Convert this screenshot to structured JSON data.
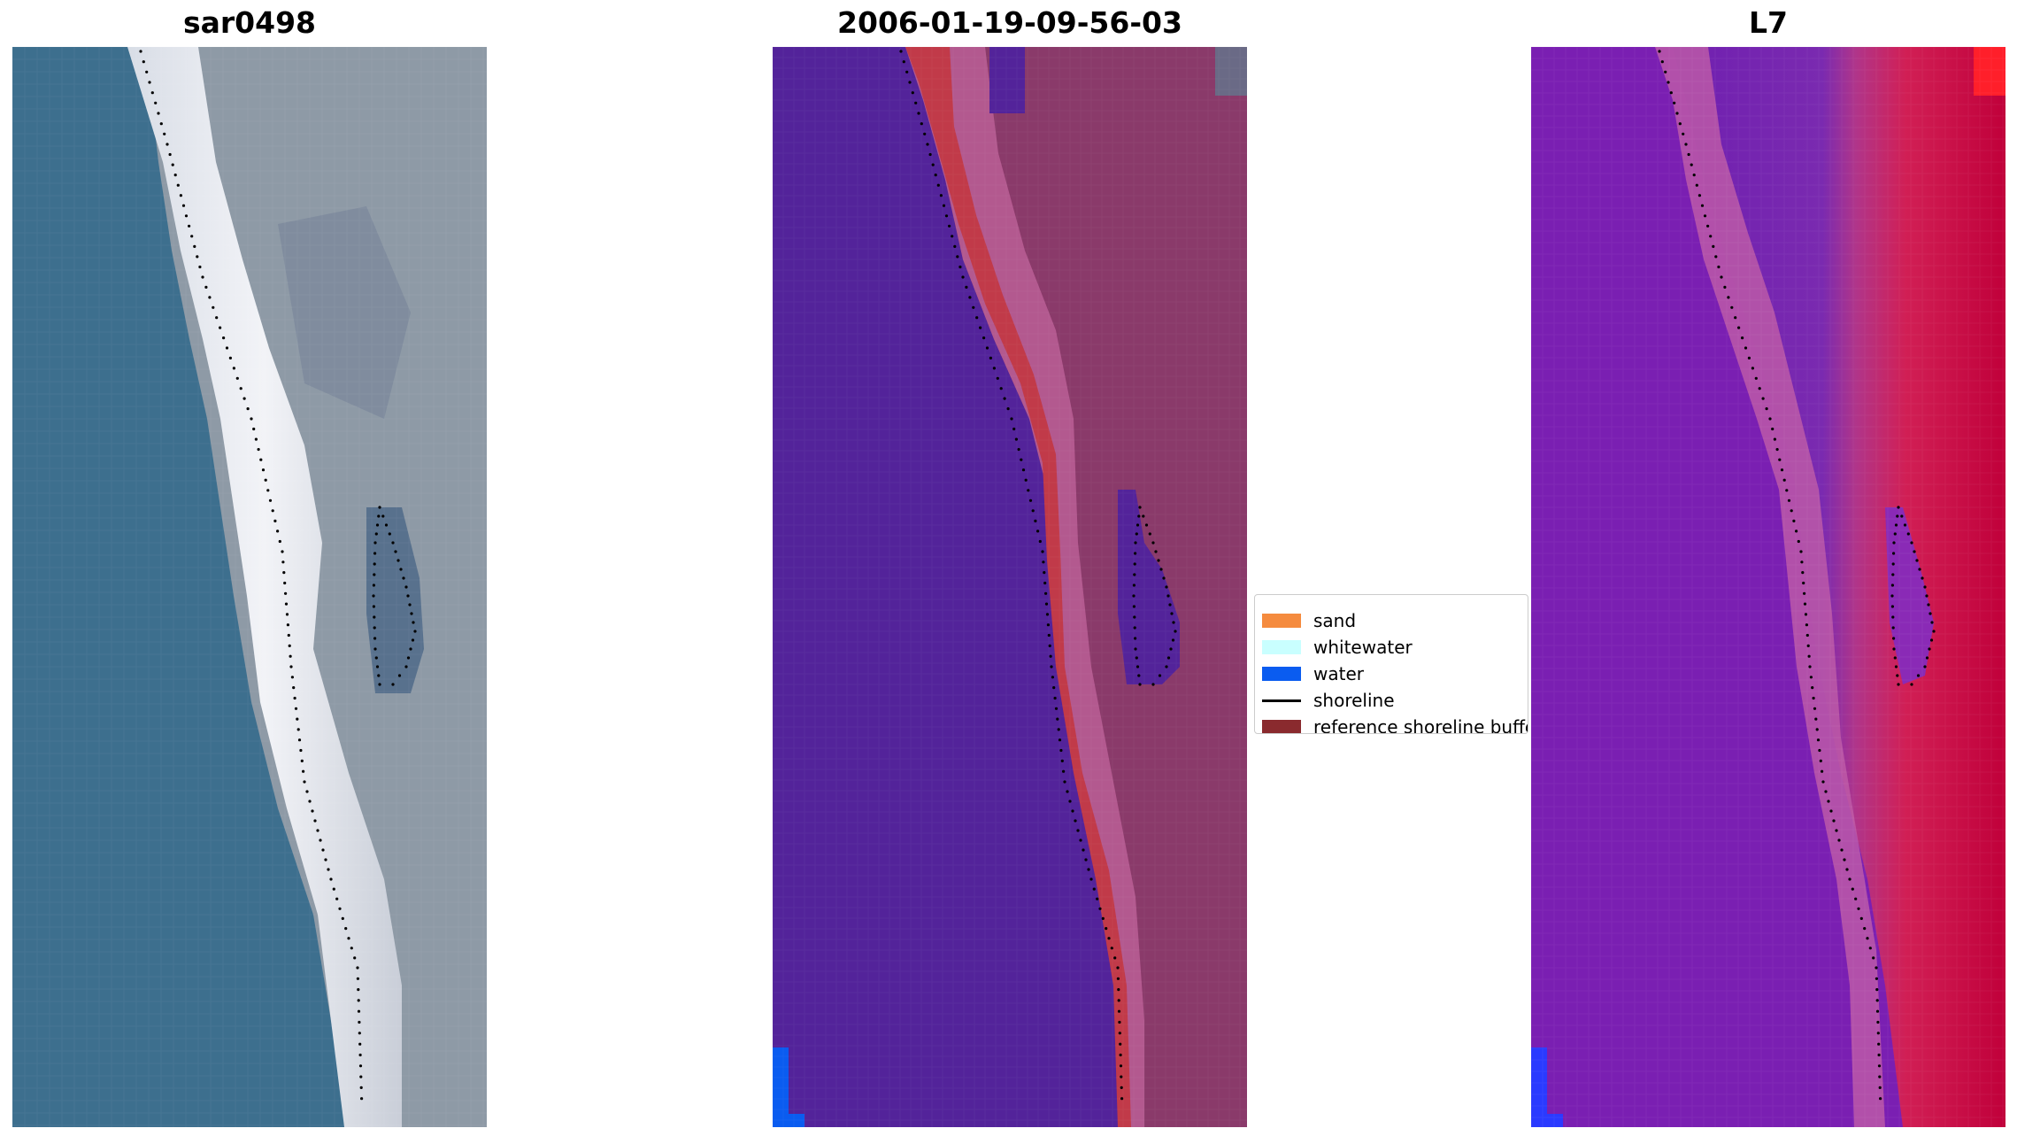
{
  "panels": [
    {
      "title": "sar0498"
    },
    {
      "title": "2006-01-19-09-56-03"
    },
    {
      "title": "L7"
    }
  ],
  "legend": {
    "items": [
      {
        "label": "sand",
        "color": "#f58b3e",
        "kind": "patch"
      },
      {
        "label": "whitewater",
        "color": "#c9ffff",
        "kind": "patch"
      },
      {
        "label": "water",
        "color": "#0a5cf0",
        "kind": "patch"
      },
      {
        "label": "shoreline",
        "color": "#000000",
        "kind": "line"
      },
      {
        "label": "reference shoreline buffer",
        "color": "#8a2a2e",
        "kind": "patch"
      }
    ]
  },
  "colors": {
    "rgb_water": "#3d6f8e",
    "rgb_beach": "#eaecf2",
    "rgb_land": "#8e9aa6",
    "class_water": "#53239a",
    "class_buffer": "#c13a49",
    "class_land": "#8a3a6a",
    "class_corner_water": "#0a5cf0",
    "index_water": "#7a1fb2",
    "index_land": "#c8003a",
    "shoreline_dots": "#000000"
  }
}
